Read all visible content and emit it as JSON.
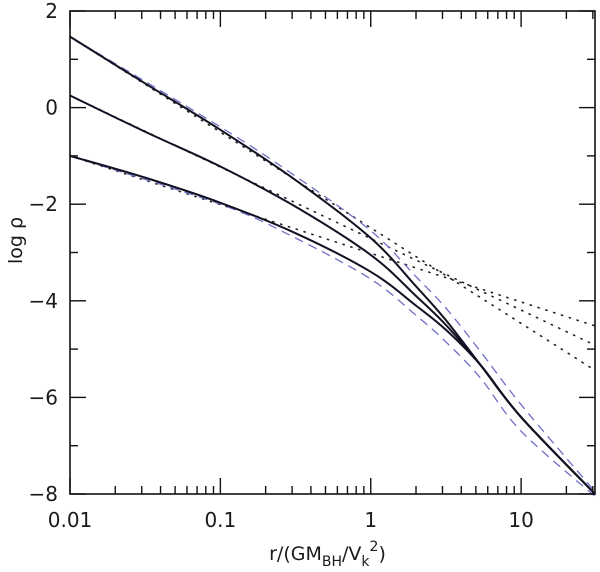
{
  "chart_data": {
    "type": "line",
    "title": "",
    "xlabel": "r/(GM_BH/V_k^2)",
    "xlabel_parts": {
      "main": "r/(GM",
      "sub1": "BH",
      "mid": "/V",
      "sub2": "k",
      "sup": "2",
      "end": ")"
    },
    "ylabel": "log ρ",
    "xscale": "log",
    "xlim": [
      0.01,
      31
    ],
    "ylim": [
      -8,
      2
    ],
    "x_ticks": [
      {
        "value": 0.01,
        "label": "0.01"
      },
      {
        "value": 0.1,
        "label": "0.1"
      },
      {
        "value": 1,
        "label": "1"
      },
      {
        "value": 10,
        "label": "10"
      }
    ],
    "y_ticks": [
      {
        "value": 2,
        "label": "2"
      },
      {
        "value": 0,
        "label": "0"
      },
      {
        "value": -2,
        "label": "−2"
      },
      {
        "value": -4,
        "label": "−4"
      },
      {
        "value": -6,
        "label": "−6"
      },
      {
        "value": -8,
        "label": "−8"
      }
    ],
    "grid": false,
    "legend": null,
    "series": [
      {
        "name": "solid-1",
        "style": "solid",
        "color": "#111122",
        "x": [
          0.01,
          0.0316,
          0.1,
          0.316,
          1,
          2.0,
          3.16,
          5.37,
          10,
          31
        ],
        "y": [
          1.47,
          0.5,
          -0.46,
          -1.5,
          -2.7,
          -3.7,
          -4.4,
          -5.33,
          -6.41,
          -8.0
        ]
      },
      {
        "name": "solid-2",
        "style": "solid",
        "color": "#111122",
        "x": [
          0.01,
          0.0316,
          0.1,
          0.316,
          1,
          2.0,
          3.16,
          5.37,
          10,
          31
        ],
        "y": [
          0.25,
          -0.5,
          -1.22,
          -2.05,
          -3.05,
          -3.9,
          -4.5,
          -5.33,
          -6.41,
          -8.0
        ]
      },
      {
        "name": "solid-3",
        "style": "solid",
        "color": "#111122",
        "x": [
          0.01,
          0.0316,
          0.1,
          0.316,
          1,
          2.0,
          3.16,
          5.37,
          10,
          31
        ],
        "y": [
          -1.0,
          -1.45,
          -1.97,
          -2.6,
          -3.4,
          -4.1,
          -4.6,
          -5.33,
          -6.41,
          -8.0
        ]
      },
      {
        "name": "dotted-1",
        "style": "dotted",
        "color": "#222222",
        "x": [
          0.01,
          31
        ],
        "y": [
          1.47,
          -5.44
        ]
      },
      {
        "name": "dotted-2",
        "style": "dotted",
        "color": "#222222",
        "x": [
          0.01,
          31
        ],
        "y": [
          0.25,
          -4.92
        ]
      },
      {
        "name": "dotted-3",
        "style": "dotted",
        "color": "#222222",
        "x": [
          0.01,
          31
        ],
        "y": [
          -1.0,
          -4.52
        ]
      },
      {
        "name": "dashed-upper",
        "style": "dashed",
        "color": "#6f6fc8",
        "x": [
          0.01,
          0.1,
          0.316,
          1,
          2.0,
          3.16,
          5.37,
          10,
          31
        ],
        "y": [
          1.47,
          -0.4,
          -1.42,
          -2.55,
          -3.5,
          -4.15,
          -5.05,
          -6.15,
          -7.95
        ]
      },
      {
        "name": "dashed-lower",
        "style": "dashed",
        "color": "#6f6fc8",
        "x": [
          0.01,
          0.1,
          0.316,
          1,
          2.0,
          3.16,
          5.37,
          10,
          31
        ],
        "y": [
          -1.0,
          -2.0,
          -2.7,
          -3.55,
          -4.3,
          -4.85,
          -5.6,
          -6.7,
          -8.05
        ]
      }
    ]
  }
}
